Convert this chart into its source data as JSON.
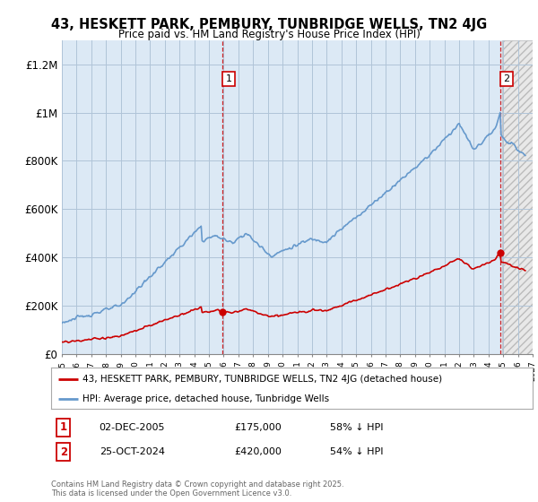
{
  "title": "43, HESKETT PARK, PEMBURY, TUNBRIDGE WELLS, TN2 4JG",
  "subtitle": "Price paid vs. HM Land Registry's House Price Index (HPI)",
  "ylabel_ticks": [
    "£0",
    "£200K",
    "£400K",
    "£600K",
    "£800K",
    "£1M",
    "£1.2M"
  ],
  "ytick_values": [
    0,
    200000,
    400000,
    600000,
    800000,
    1000000,
    1200000
  ],
  "ylim": [
    0,
    1300000
  ],
  "xlim_start": 1995,
  "xlim_end": 2027,
  "purchase1_date": "02-DEC-2005",
  "purchase1_price": 175000,
  "purchase1_hpi": "58% ↓ HPI",
  "purchase1_year": 2005.92,
  "purchase2_date": "25-OCT-2024",
  "purchase2_price": 420000,
  "purchase2_hpi": "54% ↓ HPI",
  "purchase2_year": 2024.8,
  "legend_line1": "43, HESKETT PARK, PEMBURY, TUNBRIDGE WELLS, TN2 4JG (detached house)",
  "legend_line2": "HPI: Average price, detached house, Tunbridge Wells",
  "footnote": "Contains HM Land Registry data © Crown copyright and database right 2025.\nThis data is licensed under the Open Government Licence v3.0.",
  "color_red": "#cc0000",
  "color_blue": "#6699cc",
  "background_color": "#ffffff",
  "plot_bg_color": "#dce9f5",
  "grid_color": "#b0c4d8",
  "hatch_color": "#c8c8c8",
  "label1": "1",
  "label2": "2"
}
